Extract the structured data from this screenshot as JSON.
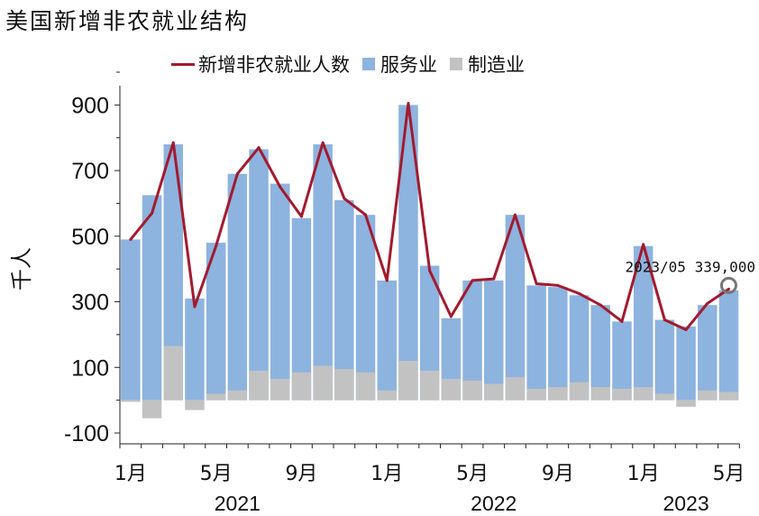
{
  "title": "美国新增非农就业结构",
  "legend": [
    {
      "label": "新增非农就业人数",
      "kind": "line",
      "color": "#A31A2E"
    },
    {
      "label": "服务业",
      "kind": "box",
      "color": "#8DB3DF"
    },
    {
      "label": "制造业",
      "kind": "box",
      "color": "#C2C2C2"
    }
  ],
  "chart_data": {
    "type": "bar",
    "ylabel": "千人",
    "ylim": [
      -100,
      1000
    ],
    "yticks": [
      -100,
      100,
      300,
      500,
      700,
      900
    ],
    "months": [
      "2021-01",
      "2021-02",
      "2021-03",
      "2021-04",
      "2021-05",
      "2021-06",
      "2021-07",
      "2021-08",
      "2021-09",
      "2021-10",
      "2021-11",
      "2021-12",
      "2022-01",
      "2022-02",
      "2022-03",
      "2022-04",
      "2022-05",
      "2022-06",
      "2022-07",
      "2022-08",
      "2022-09",
      "2022-10",
      "2022-11",
      "2022-12",
      "2023-01",
      "2023-02",
      "2023-03",
      "2023-04",
      "2023-05"
    ],
    "month_tick_labels": [
      {
        "index": 0,
        "label": "1月"
      },
      {
        "index": 4,
        "label": "5月"
      },
      {
        "index": 8,
        "label": "9月"
      },
      {
        "index": 12,
        "label": "1月"
      },
      {
        "index": 16,
        "label": "5月"
      },
      {
        "index": 20,
        "label": "9月"
      },
      {
        "index": 24,
        "label": "1月"
      },
      {
        "index": 28,
        "label": "5月"
      }
    ],
    "year_labels": [
      {
        "index": 5.5,
        "label": "2021"
      },
      {
        "index": 17.5,
        "label": "2022"
      },
      {
        "index": 26.5,
        "label": "2023"
      }
    ],
    "series": [
      {
        "name": "服务业",
        "color": "#8DB3DF",
        "values": [
          490,
          625,
          780,
          310,
          480,
          690,
          765,
          660,
          555,
          780,
          610,
          565,
          365,
          900,
          410,
          250,
          365,
          365,
          565,
          350,
          345,
          320,
          290,
          240,
          470,
          245,
          225,
          290,
          335
        ]
      },
      {
        "name": "制造业",
        "color": "#C2C2C2",
        "values": [
          -5,
          -55,
          165,
          -30,
          20,
          30,
          90,
          65,
          85,
          105,
          95,
          85,
          30,
          120,
          90,
          65,
          60,
          50,
          70,
          35,
          40,
          55,
          40,
          35,
          40,
          20,
          -20,
          30,
          25
        ]
      },
      {
        "name": "新增非农就业人数",
        "color": "#A31A2E",
        "values": [
          490,
          570,
          785,
          285,
          470,
          690,
          770,
          650,
          560,
          785,
          615,
          565,
          365,
          905,
          395,
          255,
          365,
          370,
          565,
          355,
          350,
          325,
          290,
          240,
          475,
          245,
          215,
          295,
          339
        ]
      }
    ],
    "annotation": {
      "index": 28,
      "text": "2023/05 339,000"
    }
  }
}
